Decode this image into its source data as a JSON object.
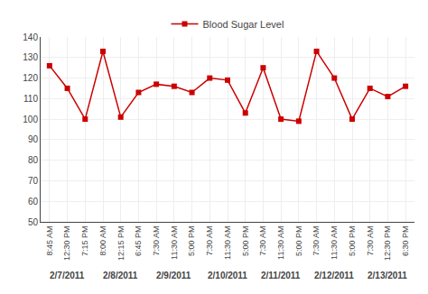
{
  "chart_data": {
    "type": "line",
    "categories": [
      "8:45 AM",
      "12:30 PM",
      "7:15 PM",
      "8:00 AM",
      "12:15 PM",
      "6:45 PM",
      "7:30 AM",
      "11:30 AM",
      "5:00 PM",
      "7:30 AM",
      "11:30 AM",
      "5:00 PM",
      "7:30 AM",
      "11:30 AM",
      "5:00 PM",
      "7:30 AM",
      "11:30 AM",
      "5:00 PM",
      "7:30 AM",
      "12:30 PM",
      "6:30 PM"
    ],
    "series": [
      {
        "name": "Blood Sugar Level",
        "color": "#cc0000",
        "marker": "square",
        "values": [
          126,
          115,
          100,
          133,
          101,
          113,
          117,
          116,
          113,
          120,
          119,
          103,
          125,
          100,
          99,
          133,
          120,
          100,
          115,
          111,
          116
        ]
      }
    ],
    "annotations": [
      {
        "text": "2/7/2011",
        "x": 1
      },
      {
        "text": "2/8/2011",
        "x": 4
      },
      {
        "text": "2/9/2011",
        "x": 7
      },
      {
        "text": "2/10/2011",
        "x": 10
      },
      {
        "text": "2/11/2011",
        "x": 13
      },
      {
        "text": "2/12/2011",
        "x": 16
      },
      {
        "text": "2/13/2011",
        "x": 19
      }
    ],
    "ylim": [
      50,
      140
    ],
    "yticks": [
      50,
      60,
      70,
      80,
      90,
      100,
      110,
      120,
      130,
      140
    ],
    "grid": true,
    "legend": "upper center"
  }
}
